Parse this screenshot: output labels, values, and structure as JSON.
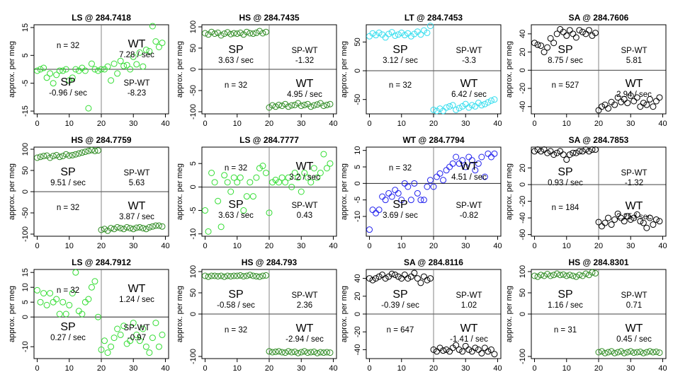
{
  "page": {
    "ylabel": "approx. per meg",
    "xticks": [
      0,
      10,
      20,
      30,
      40
    ]
  },
  "chart_data": [
    {
      "type": "scatter",
      "title": "LS @ 284.7418",
      "color": "#33dd33",
      "ylim": [
        -16,
        16
      ],
      "yticks": [
        15,
        5,
        -5,
        -15
      ],
      "annot": {
        "n": "n = 32",
        "sp_rate": "-0.96 / sec",
        "wt_rate": "7.28 / sec",
        "spwt_value": "-8.23",
        "layout": "A"
      },
      "x": [
        0,
        1,
        2,
        3,
        4,
        5,
        6,
        7,
        8,
        9,
        10,
        11,
        12,
        13,
        14,
        15,
        16,
        17,
        18,
        19,
        20,
        21,
        22,
        23,
        24,
        25,
        26,
        27,
        28,
        29,
        30,
        31,
        32,
        33,
        34,
        35,
        36,
        37,
        38,
        39
      ],
      "y": [
        -0.5,
        0,
        0.5,
        -3,
        -1.5,
        -5,
        -2,
        -0.5,
        -0.5,
        0,
        -4,
        -3,
        0,
        -0.5,
        0.5,
        -0.5,
        -14,
        2,
        0,
        -0.5,
        0,
        0,
        1,
        -4,
        2,
        -1.5,
        3,
        1.2,
        1.5,
        0,
        4.5,
        1.8,
        6,
        1,
        7,
        6.5,
        15.5,
        10,
        8,
        9.5
      ]
    },
    {
      "type": "scatter",
      "title": "HS @ 284.7435",
      "color": "#2e8b22",
      "ylim": [
        -105,
        105
      ],
      "yticks": [
        100,
        50,
        0,
        -50,
        -100
      ],
      "annot": {
        "n": "n = 32",
        "sp_rate": "3.63 / sec",
        "wt_rate": "4.95 / sec",
        "spwt_value": "-1.32",
        "layout": "B"
      },
      "x": [
        0,
        1,
        2,
        3,
        4,
        5,
        6,
        7,
        8,
        9,
        10,
        11,
        12,
        13,
        14,
        15,
        16,
        17,
        18,
        19,
        20,
        21,
        22,
        23,
        24,
        25,
        26,
        27,
        28,
        29,
        30,
        31,
        32,
        33,
        34,
        35,
        36,
        37,
        38,
        39
      ],
      "y": [
        85,
        82,
        88,
        84,
        86,
        80,
        84,
        87,
        83,
        85,
        84,
        86,
        82,
        88,
        85,
        84,
        86,
        90,
        85,
        88,
        -90,
        -85,
        -88,
        -84,
        -86,
        -82,
        -88,
        -85,
        -84,
        -80,
        -86,
        -84,
        -82,
        -88,
        -85,
        -83,
        -80,
        -86,
        -84,
        -82
      ]
    },
    {
      "type": "scatter",
      "title": "LT @ 284.7453",
      "color": "#33ddee",
      "ylim": [
        -75,
        80
      ],
      "yticks": [
        50,
        0,
        -50
      ],
      "annot": {
        "n": "n = 32",
        "sp_rate": "3.12 / sec",
        "wt_rate": "6.42 / sec",
        "spwt_value": "-3.3",
        "layout": "B"
      },
      "x": [
        0,
        1,
        2,
        3,
        4,
        5,
        6,
        7,
        8,
        9,
        10,
        11,
        12,
        13,
        14,
        15,
        16,
        17,
        18,
        19,
        20,
        21,
        22,
        23,
        24,
        25,
        26,
        27,
        28,
        29,
        30,
        31,
        32,
        33,
        34,
        35,
        36,
        37,
        38,
        39
      ],
      "y": [
        60,
        65,
        62,
        66,
        63,
        58,
        64,
        67,
        61,
        63,
        66,
        62,
        65,
        60,
        64,
        68,
        63,
        70,
        66,
        78,
        -68,
        -70,
        -66,
        -70,
        -64,
        -62,
        -60,
        -68,
        -65,
        -62,
        -58,
        -64,
        -60,
        -62,
        -56,
        -60,
        -58,
        -55,
        -52,
        -50
      ]
    },
    {
      "type": "scatter",
      "title": "SA @ 284.7606",
      "color": "#000000",
      "ylim": [
        -48,
        50
      ],
      "yticks": [
        40,
        20,
        0,
        -20,
        -40
      ],
      "annot": {
        "n": "n = 527",
        "sp_rate": "8.75 / sec",
        "wt_rate": "2.94 / sec",
        "spwt_value": "5.81",
        "layout": "B"
      },
      "x": [
        0,
        1,
        2,
        3,
        4,
        5,
        6,
        7,
        8,
        9,
        10,
        11,
        12,
        13,
        14,
        15,
        16,
        17,
        18,
        19,
        20,
        21,
        22,
        23,
        24,
        25,
        26,
        27,
        28,
        29,
        30,
        31,
        32,
        33,
        34,
        35,
        36,
        37,
        38,
        39
      ],
      "y": [
        30,
        28,
        27,
        20,
        25,
        35,
        30,
        40,
        45,
        42,
        38,
        44,
        40,
        36,
        44,
        42,
        40,
        44,
        38,
        41,
        -44,
        -40,
        -38,
        -42,
        -35,
        -38,
        -30,
        -35,
        -32,
        -36,
        -28,
        -34,
        -30,
        -40,
        -36,
        -38,
        -32,
        -40,
        -34,
        -30
      ]
    },
    {
      "type": "scatter",
      "title": "HS @ 284.7759",
      "color": "#2e8b22",
      "ylim": [
        -105,
        105
      ],
      "yticks": [
        100,
        50,
        0,
        -50,
        -100
      ],
      "annot": {
        "n": "n = 32",
        "sp_rate": "9.51 / sec",
        "wt_rate": "3.87 / sec",
        "spwt_value": "5.63",
        "layout": "B"
      },
      "x": [
        0,
        1,
        2,
        3,
        4,
        5,
        6,
        7,
        8,
        9,
        10,
        11,
        12,
        13,
        14,
        15,
        16,
        17,
        18,
        19,
        20,
        21,
        22,
        23,
        24,
        25,
        26,
        27,
        28,
        29,
        30,
        31,
        32,
        33,
        34,
        35,
        36,
        37,
        38,
        39
      ],
      "y": [
        80,
        82,
        84,
        85,
        80,
        84,
        86,
        82,
        84,
        88,
        85,
        86,
        88,
        90,
        92,
        94,
        96,
        98,
        96,
        97,
        -90,
        -88,
        -92,
        -86,
        -88,
        -84,
        -86,
        -88,
        -84,
        -86,
        -88,
        -85,
        -84,
        -86,
        -88,
        -84,
        -82,
        -80,
        -80,
        -82
      ]
    },
    {
      "type": "scatter",
      "title": "LS @ 284.7777",
      "color": "#33dd33",
      "ylim": [
        -10.5,
        8.5
      ],
      "yticks": [
        5,
        0,
        -5,
        -10
      ],
      "annot": {
        "n": "n = 32",
        "sp_rate": "3.63 / sec",
        "wt_rate": "3.2 / sec",
        "spwt_value": "0.43",
        "layout": "A"
      },
      "x": [
        0,
        1,
        2,
        3,
        4,
        5,
        6,
        7,
        8,
        9,
        10,
        11,
        12,
        13,
        14,
        15,
        16,
        17,
        18,
        19,
        20,
        21,
        22,
        23,
        24,
        25,
        26,
        27,
        28,
        29,
        30,
        31,
        32,
        33,
        34,
        35,
        36,
        37,
        38,
        39
      ],
      "y": [
        -5,
        -9.5,
        3,
        1,
        -3,
        -8.5,
        2.5,
        1,
        -1,
        2,
        1,
        2,
        -5,
        -2,
        1,
        -2,
        2,
        4,
        4.5,
        3,
        -5.5,
        1,
        1.5,
        1,
        2,
        1,
        2,
        0,
        3,
        2,
        -1,
        3,
        2,
        1,
        4,
        2,
        3,
        7,
        4,
        5
      ]
    },
    {
      "type": "scatter",
      "title": "WT @ 284.7794",
      "color": "#2222ee",
      "ylim": [
        -16,
        11
      ],
      "yticks": [
        10,
        5,
        0,
        -5,
        -10
      ],
      "annot": {
        "n": "n = 32",
        "sp_rate": "3.69 / sec",
        "wt_rate": "4.51 / sec",
        "spwt_value": "-0.82",
        "layout": "A"
      },
      "x": [
        0,
        1,
        2,
        3,
        4,
        5,
        6,
        7,
        8,
        9,
        10,
        11,
        12,
        13,
        14,
        15,
        16,
        17,
        18,
        19,
        20,
        21,
        22,
        23,
        24,
        25,
        26,
        27,
        28,
        29,
        30,
        31,
        32,
        33,
        34,
        35,
        36,
        37,
        38,
        39
      ],
      "y": [
        -14,
        -8,
        -9,
        -8,
        -4,
        -5,
        -3,
        -4,
        -2,
        -3,
        -5,
        0,
        -1,
        -5,
        0,
        -3,
        -5,
        -5,
        -1,
        1,
        -1,
        2,
        3,
        1,
        4,
        5,
        6,
        8,
        6,
        7,
        5,
        8,
        7,
        4,
        6,
        8,
        2,
        9,
        8,
        9
      ]
    },
    {
      "type": "scatter",
      "title": "SA @ 284.7853",
      "color": "#000000",
      "ylim": [
        -62,
        45
      ],
      "yticks": [
        20,
        0,
        -20,
        -40,
        -60
      ],
      "annot": {
        "n": "n = 184",
        "sp_rate": "0.93 / sec",
        "wt_rate": "2.25 / sec",
        "spwt_value": "-1.32",
        "layout": "B"
      },
      "x": [
        0,
        1,
        2,
        3,
        4,
        5,
        6,
        7,
        8,
        9,
        10,
        11,
        12,
        13,
        14,
        15,
        16,
        17,
        18,
        19,
        20,
        21,
        22,
        23,
        24,
        25,
        26,
        27,
        28,
        29,
        30,
        31,
        32,
        33,
        34,
        35,
        36,
        37,
        38,
        39
      ],
      "y": [
        40,
        42,
        40,
        42,
        38,
        40,
        36,
        38,
        40,
        36,
        30,
        36,
        38,
        38,
        40,
        40,
        42,
        40,
        42,
        42,
        -45,
        -50,
        -46,
        -40,
        -48,
        -42,
        -35,
        -40,
        -44,
        -38,
        -42,
        -40,
        -36,
        -44,
        -46,
        -52,
        -40,
        -48,
        -42,
        -44
      ]
    },
    {
      "type": "scatter",
      "title": "LS @ 284.7912",
      "color": "#33dd33",
      "ylim": [
        -14,
        16
      ],
      "yticks": [
        15,
        10,
        5,
        0,
        -10
      ],
      "annot": {
        "n": "n = 32",
        "sp_rate": "0.27 / sec",
        "wt_rate": "1.24 / sec",
        "spwt_value": "-0.97",
        "layout": "A"
      },
      "x": [
        0,
        1,
        2,
        3,
        4,
        5,
        6,
        7,
        8,
        9,
        10,
        11,
        12,
        13,
        14,
        15,
        16,
        17,
        18,
        19,
        20,
        21,
        22,
        23,
        24,
        25,
        26,
        27,
        28,
        29,
        30,
        31,
        32,
        33,
        34,
        35,
        36,
        37,
        38,
        39
      ],
      "y": [
        9,
        5,
        8,
        4,
        8,
        5,
        6,
        1,
        5,
        1,
        4,
        8,
        15,
        2,
        1,
        5,
        6,
        10,
        12,
        0,
        -11,
        -8,
        -12,
        -10,
        -7,
        -4,
        -6,
        -3,
        -9,
        -8,
        -2,
        -6,
        -8,
        -4,
        -10,
        -12,
        -7,
        -2,
        -10,
        -6
      ]
    },
    {
      "type": "scatter",
      "title": "HS @ 284.793",
      "color": "#2e8b22",
      "ylim": [
        -105,
        105
      ],
      "yticks": [
        100,
        50,
        0,
        -100
      ],
      "annot": {
        "n": "n = 32",
        "sp_rate": "-0.58 / sec",
        "wt_rate": "-2.94 / sec",
        "spwt_value": "2.36",
        "layout": "B"
      },
      "x": [
        0,
        1,
        2,
        3,
        4,
        5,
        6,
        7,
        8,
        9,
        10,
        11,
        12,
        13,
        14,
        15,
        16,
        17,
        18,
        19,
        20,
        21,
        22,
        23,
        24,
        25,
        26,
        27,
        28,
        29,
        30,
        31,
        32,
        33,
        34,
        35,
        36,
        37,
        38,
        39
      ],
      "y": [
        90,
        88,
        90,
        90,
        89,
        90,
        88,
        90,
        89,
        90,
        90,
        91,
        89,
        90,
        92,
        90,
        89,
        88,
        90,
        91,
        -88,
        -90,
        -89,
        -88,
        -90,
        -91,
        -88,
        -90,
        -89,
        -92,
        -90,
        -88,
        -91,
        -90,
        -89,
        -92,
        -90,
        -91,
        -90,
        -91
      ]
    },
    {
      "type": "scatter",
      "title": "SA @ 284.8116",
      "color": "#000000",
      "ylim": [
        -50,
        50
      ],
      "yticks": [
        40,
        20,
        0,
        -20,
        -40
      ],
      "annot": {
        "n": "n = 647",
        "sp_rate": "-0.39 / sec",
        "wt_rate": "-1.41 / sec",
        "spwt_value": "1.02",
        "layout": "B"
      },
      "x": [
        0,
        1,
        2,
        3,
        4,
        5,
        6,
        7,
        8,
        9,
        10,
        11,
        12,
        13,
        14,
        15,
        16,
        17,
        18,
        19,
        20,
        21,
        22,
        23,
        24,
        25,
        26,
        27,
        28,
        29,
        30,
        31,
        32,
        33,
        34,
        35,
        36,
        37,
        38,
        39
      ],
      "y": [
        40,
        38,
        40,
        42,
        44,
        40,
        42,
        45,
        44,
        42,
        40,
        44,
        40,
        42,
        46,
        40,
        35,
        42,
        38,
        40,
        -40,
        -42,
        -38,
        -41,
        -40,
        -42,
        -38,
        -35,
        -40,
        -42,
        -36,
        -40,
        -42,
        -38,
        -40,
        -44,
        -38,
        -42,
        -40,
        -45
      ]
    },
    {
      "type": "scatter",
      "title": "HS @ 284.8301",
      "color": "#2e8b22",
      "ylim": [
        -105,
        105
      ],
      "yticks": [
        100,
        50,
        0,
        -100
      ],
      "annot": {
        "n": "n = 31",
        "sp_rate": "1.16 / sec",
        "wt_rate": "0.45 / sec",
        "spwt_value": "0.71",
        "layout": "B"
      },
      "x": [
        0,
        1,
        2,
        3,
        4,
        5,
        6,
        7,
        8,
        9,
        10,
        11,
        12,
        13,
        14,
        15,
        16,
        17,
        18,
        19,
        20,
        21,
        22,
        23,
        24,
        25,
        26,
        27,
        28,
        29,
        30,
        31,
        32,
        33,
        34,
        35,
        36,
        37,
        38,
        39
      ],
      "y": [
        90,
        88,
        92,
        90,
        94,
        90,
        92,
        95,
        92,
        93,
        90,
        92,
        90,
        88,
        92,
        90,
        95,
        92,
        98,
        96,
        -90,
        -88,
        -92,
        -90,
        -88,
        -92,
        -90,
        -88,
        -92,
        -90,
        -88,
        -91,
        -90,
        -89,
        -92,
        -90,
        -88,
        -90,
        -89,
        -91
      ]
    }
  ],
  "labels": {
    "sp": "SP",
    "wt": "WT",
    "spwt": "SP-WT"
  }
}
